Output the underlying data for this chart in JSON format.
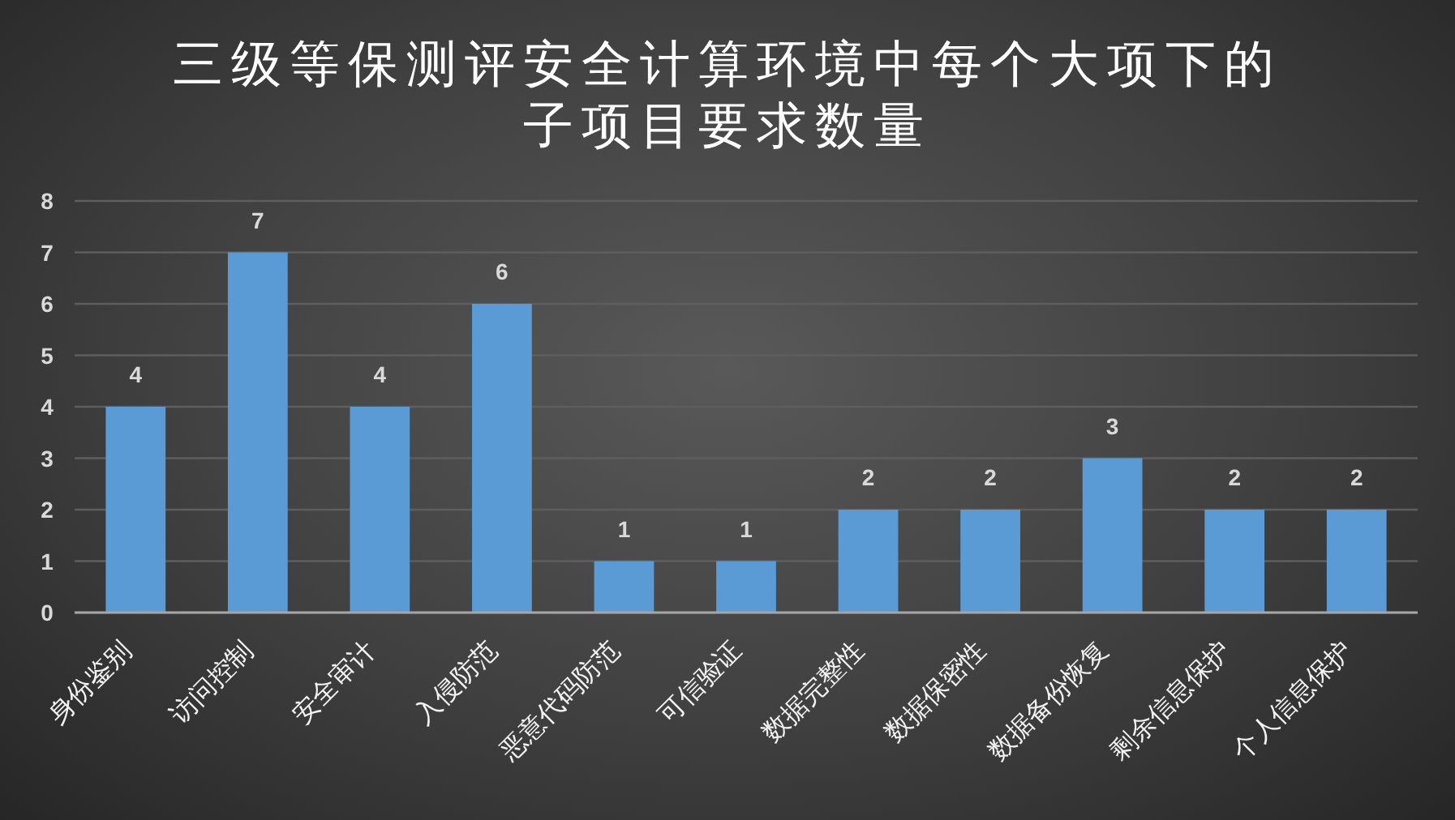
{
  "chart_data": {
    "type": "bar",
    "title": "三级等保测评安全计算环境中每个大项下的子项目要求数量",
    "categories": [
      "身份鉴别",
      "访问控制",
      "安全审计",
      "入侵防范",
      "恶意代码防范",
      "可信验证",
      "数据完整性",
      "数据保密性",
      "数据备份恢复",
      "剩余信息保护",
      "个人信息保护"
    ],
    "values": [
      4,
      7,
      4,
      6,
      1,
      1,
      2,
      2,
      3,
      2,
      2
    ],
    "color": "#5b9bd5",
    "ylim": [
      0,
      8
    ],
    "yticks": [
      0,
      1,
      2,
      3,
      4,
      5,
      6,
      7,
      8
    ],
    "grid": "y",
    "data_labels": true
  }
}
